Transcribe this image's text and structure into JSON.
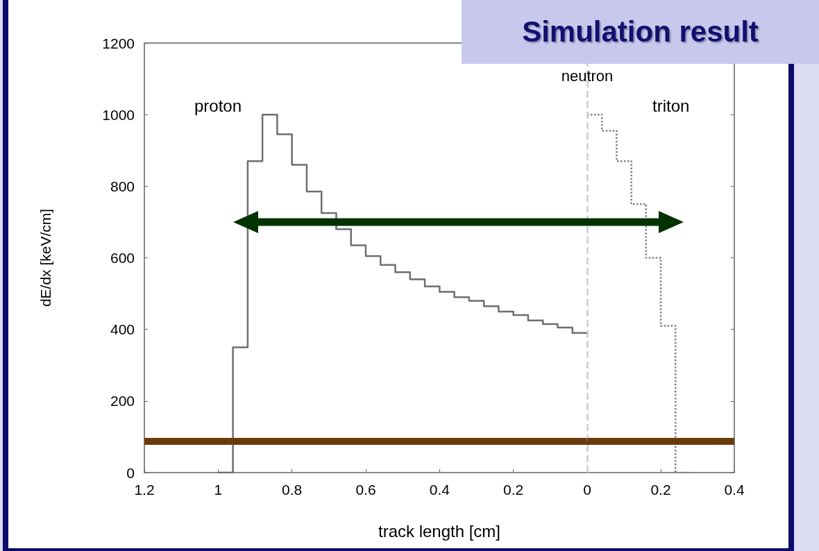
{
  "chart_data": [
    {
      "type": "step",
      "title": "Simulation result",
      "xlabel": "track length [cm]",
      "ylabel": "dE/dx [keV/cm]",
      "series": [
        {
          "color": "#6e6e6e",
          "line_style": "solid",
          "x": [
            1.0,
            0.96,
            0.92,
            0.88,
            0.84,
            0.8,
            0.76,
            0.72,
            0.68,
            0.64,
            0.6,
            0.56,
            0.52,
            0.48,
            0.44,
            0.4,
            0.36,
            0.32,
            0.28,
            0.24,
            0.2,
            0.16,
            0.12,
            0.08,
            0.04,
            0
          ],
          "values": [
            0,
            350,
            870,
            1000,
            945,
            860,
            785,
            725,
            680,
            635,
            605,
            580,
            560,
            540,
            520,
            505,
            490,
            480,
            465,
            450,
            440,
            425,
            415,
            405,
            390,
            390
          ]
        }
      ],
      "xlim": [
        1.2,
        0
      ],
      "xticks": [
        1.2,
        1,
        0.8,
        0.6,
        0.4,
        0.2
      ],
      "ylim": [
        0,
        1200
      ],
      "yticks": [
        0,
        200,
        400,
        600,
        800,
        1000,
        1200
      ],
      "ref_lines": [
        {
          "axis": "y",
          "value": 87,
          "color": "#6b3a0a",
          "line_style": "solid"
        }
      ],
      "annotations": [
        "proton"
      ]
    },
    {
      "type": "step",
      "series": [
        {
          "color": "#808080",
          "line_style": "dotted",
          "x": [
            0,
            0.04,
            0.08,
            0.12,
            0.16,
            0.2,
            0.24,
            0.28
          ],
          "values": [
            1000,
            955,
            870,
            750,
            600,
            410,
            0,
            0
          ]
        }
      ],
      "xlim": [
        0,
        0.4
      ],
      "xticks": [
        0,
        0.2,
        0.4
      ],
      "ylim": [
        0,
        1200
      ],
      "tick_labels": "x",
      "ref_lines": [
        {
          "axis": "x",
          "value": 0,
          "label": "neutron",
          "color": "#cccccc",
          "line_style": "dashed"
        },
        {
          "axis": "y",
          "value": 87,
          "color": "#6b3a0a",
          "line_style": "solid"
        }
      ],
      "annotations": [
        "triton"
      ]
    }
  ]
}
